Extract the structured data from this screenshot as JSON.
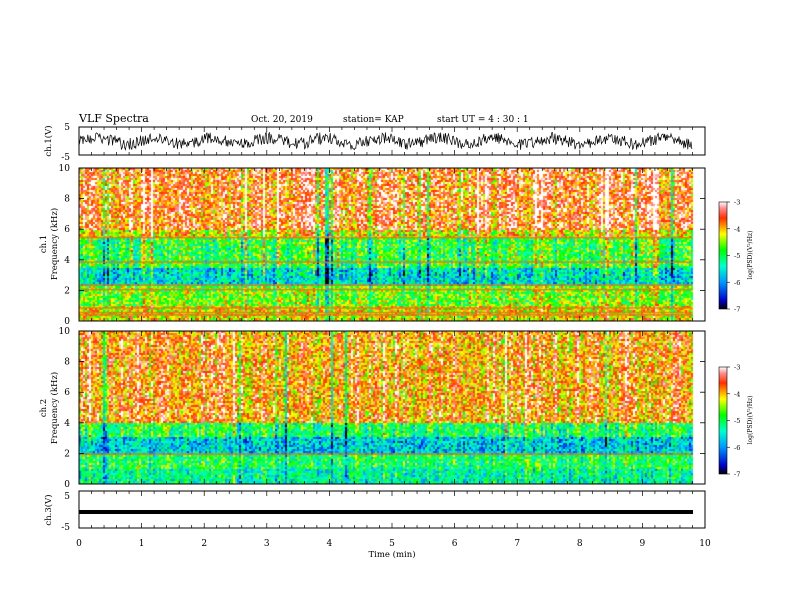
{
  "header": {
    "title": "VLF Spectra",
    "date": "Oct. 20, 2019",
    "station": "station= KAP",
    "start": "start UT =  4 : 30 : 1"
  },
  "chart_data": [
    {
      "type": "line",
      "panel": "ch1-waveform",
      "ylabel": "ch.1(V)",
      "ylim": [
        -5,
        5
      ],
      "yticks": [
        "5",
        "-5"
      ],
      "xlim": [
        0,
        10
      ],
      "series": [
        {
          "values_note": "noisy waveform, approx. between -3 and 3 V, extends to ~9.8 min"
        }
      ]
    },
    {
      "type": "heatmap",
      "panel": "ch1-spectrogram",
      "ylabel": "ch.1",
      "ylabel2": "Frequency (kHz)",
      "ylim": [
        0,
        10
      ],
      "yticks": [
        "0",
        "2",
        "4",
        "6",
        "8",
        "10"
      ],
      "xlim": [
        0,
        10
      ],
      "data_end_min": 9.8,
      "colorbar": {
        "label": "log(PSD)(V²/Hz)",
        "ticks": [
          "-3",
          "-4",
          "-5",
          "-6",
          "-7"
        ],
        "range": [
          -7,
          -3
        ]
      },
      "bands": [
        {
          "fmin": 6,
          "fmax": 10,
          "level": -3.6
        },
        {
          "fmin": 5.5,
          "fmax": 6,
          "level": -4.2
        },
        {
          "fmin": 3.5,
          "fmax": 5.5,
          "level": -4.9
        },
        {
          "fmin": 2.4,
          "fmax": 3.5,
          "level": -5.6
        },
        {
          "fmin": 1.0,
          "fmax": 2.4,
          "level": -4.6
        },
        {
          "fmin": 0,
          "fmax": 1.0,
          "level": -4.2
        }
      ],
      "lines_khz": [
        5.5,
        3.9,
        2.4,
        2.1,
        0.9,
        0.6,
        0.45
      ]
    },
    {
      "type": "heatmap",
      "panel": "ch2-spectrogram",
      "ylabel": "ch.2",
      "ylabel2": "Frequency (kHz)",
      "ylim": [
        0,
        10
      ],
      "yticks": [
        "0",
        "2",
        "4",
        "6",
        "8",
        "10"
      ],
      "xlim": [
        0,
        10
      ],
      "data_end_min": 9.8,
      "colorbar": {
        "label": "log(PSD)(V²/Hz)",
        "ticks": [
          "-3",
          "-4",
          "-5",
          "-6",
          "-7"
        ],
        "range": [
          -7,
          -3
        ]
      },
      "bands": [
        {
          "fmin": 4,
          "fmax": 10,
          "level": -3.8
        },
        {
          "fmin": 3.2,
          "fmax": 4,
          "level": -5.0
        },
        {
          "fmin": 2.0,
          "fmax": 3.2,
          "level": -5.7
        },
        {
          "fmin": 1.0,
          "fmax": 2.0,
          "level": -5.0
        },
        {
          "fmin": 0,
          "fmax": 1.0,
          "level": -5.3
        }
      ],
      "lines_khz": [
        2.0
      ]
    },
    {
      "type": "line",
      "panel": "ch3-waveform",
      "ylabel": "ch.3(V)",
      "ylim": [
        -5,
        5
      ],
      "yticks": [
        "5",
        "-5"
      ],
      "xlim": [
        0,
        10
      ],
      "series": [
        {
          "values_note": "flat",
          "level": 0
        }
      ]
    }
  ],
  "x_axis": {
    "label": "Time (min)",
    "ticks": [
      "0",
      "1",
      "2",
      "3",
      "4",
      "5",
      "6",
      "7",
      "8",
      "9",
      "10"
    ]
  }
}
